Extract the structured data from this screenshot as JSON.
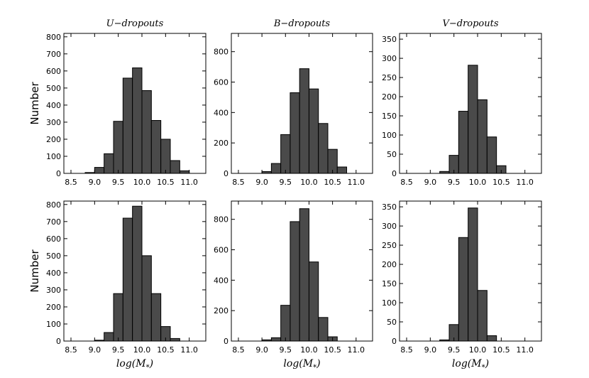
{
  "chart_data": [
    {
      "type": "bar",
      "row": 0,
      "col": 0,
      "title": "U−dropouts",
      "ylabel": "Number",
      "xlabel": "",
      "xlim": [
        8.35,
        11.35
      ],
      "ylim": [
        0,
        820
      ],
      "xticks": [
        8.5,
        9.0,
        9.5,
        10.0,
        10.5,
        11.0
      ],
      "xtick_labels": [
        "8.5",
        "9.0",
        "9.5",
        "10.0",
        "10.5",
        "11.0"
      ],
      "yticks": [
        0,
        100,
        200,
        300,
        400,
        500,
        600,
        700,
        800
      ],
      "ytick_labels": [
        "0",
        "100",
        "200",
        "300",
        "400",
        "500",
        "600",
        "700",
        "800"
      ],
      "bin_width": 0.2,
      "bins": [
        8.8,
        9.0,
        9.2,
        9.4,
        9.6,
        9.8,
        10.0,
        10.2,
        10.4,
        10.6,
        10.8
      ],
      "values": [
        5,
        35,
        115,
        305,
        558,
        618,
        485,
        310,
        200,
        75,
        15
      ]
    },
    {
      "type": "bar",
      "row": 0,
      "col": 1,
      "title": "B−dropouts",
      "ylabel": "",
      "xlabel": "",
      "xlim": [
        8.35,
        11.35
      ],
      "ylim": [
        0,
        920
      ],
      "xticks": [
        8.5,
        9.0,
        9.5,
        10.0,
        10.5,
        11.0
      ],
      "xtick_labels": [
        "8.5",
        "9.0",
        "9.5",
        "10.0",
        "10.5",
        "11.0"
      ],
      "yticks": [
        0,
        200,
        400,
        600,
        800
      ],
      "ytick_labels": [
        "0",
        "200",
        "400",
        "600",
        "800"
      ],
      "bin_width": 0.2,
      "bins": [
        8.8,
        9.0,
        9.2,
        9.4,
        9.6,
        9.8,
        10.0,
        10.2,
        10.4,
        10.6,
        10.8
      ],
      "values": [
        0,
        12,
        65,
        255,
        530,
        688,
        555,
        328,
        158,
        42,
        0
      ]
    },
    {
      "type": "bar",
      "row": 0,
      "col": 2,
      "title": "V−dropouts",
      "ylabel": "",
      "xlabel": "",
      "xlim": [
        8.35,
        11.35
      ],
      "ylim": [
        0,
        365
      ],
      "xticks": [
        8.5,
        9.0,
        9.5,
        10.0,
        10.5,
        11.0
      ],
      "xtick_labels": [
        "8.5",
        "9.0",
        "9.5",
        "10.0",
        "10.5",
        "11.0"
      ],
      "yticks": [
        0,
        50,
        100,
        150,
        200,
        250,
        300,
        350
      ],
      "ytick_labels": [
        "0",
        "50",
        "100",
        "150",
        "200",
        "250",
        "300",
        "350"
      ],
      "bin_width": 0.2,
      "bins": [
        9.0,
        9.2,
        9.4,
        9.6,
        9.8,
        10.0,
        10.2,
        10.4
      ],
      "values": [
        0,
        5,
        47,
        162,
        282,
        192,
        95,
        20
      ]
    },
    {
      "type": "bar",
      "row": 1,
      "col": 0,
      "title": "",
      "ylabel": "Number",
      "xlabel": "log(M*)",
      "xlim": [
        8.35,
        11.35
      ],
      "ylim": [
        0,
        820
      ],
      "xticks": [
        8.5,
        9.0,
        9.5,
        10.0,
        10.5,
        11.0
      ],
      "xtick_labels": [
        "8.5",
        "9.0",
        "9.5",
        "10.0",
        "10.5",
        "11.0"
      ],
      "yticks": [
        0,
        100,
        200,
        300,
        400,
        500,
        600,
        700,
        800
      ],
      "ytick_labels": [
        "0",
        "100",
        "200",
        "300",
        "400",
        "500",
        "600",
        "700",
        "800"
      ],
      "bin_width": 0.2,
      "bins": [
        8.8,
        9.0,
        9.2,
        9.4,
        9.6,
        9.8,
        10.0,
        10.2,
        10.4,
        10.6,
        10.8
      ],
      "values": [
        0,
        5,
        50,
        278,
        720,
        790,
        500,
        278,
        85,
        15,
        0
      ]
    },
    {
      "type": "bar",
      "row": 1,
      "col": 1,
      "title": "",
      "ylabel": "",
      "xlabel": "log(M*)",
      "xlim": [
        8.35,
        11.35
      ],
      "ylim": [
        0,
        920
      ],
      "xticks": [
        8.5,
        9.0,
        9.5,
        10.0,
        10.5,
        11.0
      ],
      "xtick_labels": [
        "8.5",
        "9.0",
        "9.5",
        "10.0",
        "10.5",
        "11.0"
      ],
      "yticks": [
        0,
        200,
        400,
        600,
        800
      ],
      "ytick_labels": [
        "0",
        "200",
        "400",
        "600",
        "800"
      ],
      "bin_width": 0.2,
      "bins": [
        8.8,
        9.0,
        9.2,
        9.4,
        9.6,
        9.8,
        10.0,
        10.2,
        10.4,
        10.6,
        10.8
      ],
      "values": [
        0,
        8,
        22,
        235,
        785,
        870,
        520,
        155,
        28,
        0,
        0
      ]
    },
    {
      "type": "bar",
      "row": 1,
      "col": 2,
      "title": "",
      "ylabel": "",
      "xlabel": "log(M*)",
      "xlim": [
        8.35,
        11.35
      ],
      "ylim": [
        0,
        365
      ],
      "xticks": [
        8.5,
        9.0,
        9.5,
        10.0,
        10.5,
        11.0
      ],
      "xtick_labels": [
        "8.5",
        "9.0",
        "9.5",
        "10.0",
        "10.5",
        "11.0"
      ],
      "yticks": [
        0,
        50,
        100,
        150,
        200,
        250,
        300,
        350
      ],
      "ytick_labels": [
        "0",
        "50",
        "100",
        "150",
        "200",
        "250",
        "300",
        "350"
      ],
      "bin_width": 0.2,
      "bins": [
        9.0,
        9.2,
        9.4,
        9.6,
        9.8,
        10.0,
        10.2,
        10.4
      ],
      "values": [
        0,
        3,
        43,
        270,
        347,
        132,
        14,
        0
      ]
    }
  ],
  "colors": {
    "bar_fill": "#4a4a4a",
    "bar_edge": "#000000",
    "axes": "#000000"
  }
}
